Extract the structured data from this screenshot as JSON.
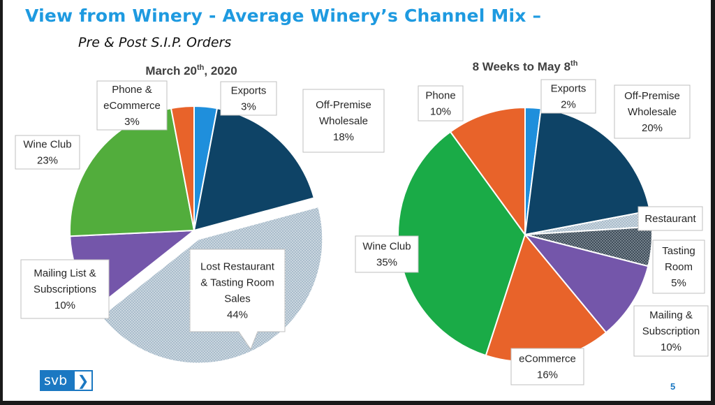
{
  "slide": {
    "title": "View from Winery - Average Winery’s Channel Mix –",
    "subtitle": "Pre & Post S.I.P. Orders",
    "logo_text": "svb",
    "logo_chevron": "❯",
    "page_number": "5"
  },
  "chart_data": [
    {
      "type": "pie",
      "title_main": "March 20",
      "title_sup": "th",
      "title_rest": ", 2020",
      "slices": [
        {
          "label": [
            "Exports",
            "3%"
          ],
          "value": 3,
          "color": "#1f8fdc"
        },
        {
          "label": [
            "Off-Premise",
            "Wholesale",
            "18%"
          ],
          "value": 18,
          "color": "#0e4366"
        },
        {
          "label": [
            "Lost Restaurant",
            "& Tasting Room",
            "Sales",
            "44%"
          ],
          "value": 44,
          "color": "#a9bccb",
          "pattern": true,
          "exploded": true
        },
        {
          "label": [
            "Mailing List &",
            "Subscriptions",
            "10%"
          ],
          "value": 10,
          "color": "#7456aa"
        },
        {
          "label": [
            "Wine Club",
            "23%"
          ],
          "value": 23,
          "color": "#52ad3c"
        },
        {
          "label": [
            "Phone &",
            "eCommerce",
            "3%"
          ],
          "value": 3,
          "color": "#e8632a"
        }
      ]
    },
    {
      "type": "pie",
      "title_main": "8 Weeks to May 8",
      "title_sup": "th",
      "title_rest": "",
      "slices": [
        {
          "label": [
            "Exports",
            "2%"
          ],
          "value": 2,
          "color": "#1f8fdc"
        },
        {
          "label": [
            "Off-Premise",
            "Wholesale",
            "20%"
          ],
          "value": 20,
          "color": "#0e4366"
        },
        {
          "label": [
            "Restaurant"
          ],
          "value": 2,
          "color": "#a9bccb",
          "pattern": true
        },
        {
          "label": [
            "Tasting",
            "Room",
            "5%"
          ],
          "value": 5,
          "color": "#3f4d59",
          "pattern": true
        },
        {
          "label": [
            "Mailing &",
            "Subscription",
            "10%"
          ],
          "value": 10,
          "color": "#7456aa"
        },
        {
          "label": [
            "eCommerce",
            "16%"
          ],
          "value": 16,
          "color": "#e8632a"
        },
        {
          "label": [
            "Wine Club",
            "35%"
          ],
          "value": 35,
          "color": "#1aab47"
        },
        {
          "label": [
            "Phone",
            "10%"
          ],
          "value": 10,
          "color": "#e8632a"
        }
      ]
    }
  ]
}
